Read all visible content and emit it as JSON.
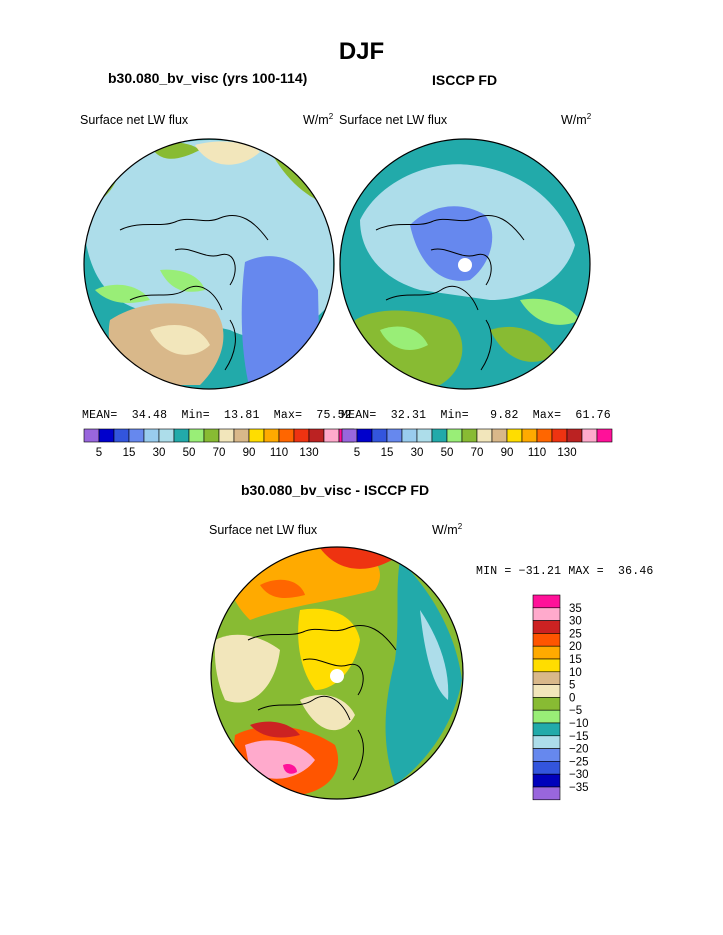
{
  "figure": {
    "title": "DJF",
    "panels": [
      {
        "title": "b30.080_bv_visc (yrs 100-114)",
        "variable": "Surface net LW flux",
        "units_base": "W/m",
        "units_exp": "2",
        "mean_label": "MEAN=",
        "mean": "34.48",
        "min_label": "Min=",
        "min": "13.81",
        "max_label": "Max=",
        "max": "75.52"
      },
      {
        "title": "ISCCP FD",
        "variable": "Surface net LW flux",
        "units_base": "W/m",
        "units_exp": "2",
        "mean_label": "MEAN=",
        "mean": "32.31",
        "min_label": "Min=",
        "min": "9.82",
        "max_label": "Max=",
        "max": "61.76"
      },
      {
        "title": "b30.080_bv_visc - ISCCP FD",
        "variable": "Surface net LW flux",
        "units_base": "W/m",
        "units_exp": "2",
        "minmax_text": "MIN = −31.21 MAX =  36.46"
      }
    ],
    "colorbar_top": {
      "colors": [
        "#9966dd",
        "#0000cc",
        "#3355dd",
        "#6688ee",
        "#99ccee",
        "#adddea",
        "#22aaaa",
        "#99ee77",
        "#88bb33",
        "#f2e6bb",
        "#d9b88a",
        "#ffdd00",
        "#ffaa00",
        "#ff6600",
        "#ee3311",
        "#bb2222",
        "#ffaacc",
        "#ff1199"
      ],
      "tick_labels": [
        "5",
        "15",
        "30",
        "50",
        "70",
        "90",
        "110",
        "130"
      ]
    },
    "colorbar_diff": {
      "colors": [
        "#9966dd",
        "#0000bb",
        "#3355dd",
        "#6688ee",
        "#adddea",
        "#22aaaa",
        "#99ee77",
        "#88bb33",
        "#f2e6bb",
        "#d9b88a",
        "#ffdd00",
        "#ffaa00",
        "#ff5500",
        "#cc2222",
        "#ffaacc",
        "#ff1199"
      ],
      "tick_labels": [
        "35",
        "30",
        "25",
        "20",
        "15",
        "10",
        "5",
        "0",
        "−5",
        "−10",
        "−15",
        "−20",
        "−25",
        "−30",
        "−35"
      ]
    }
  },
  "chart_data": [
    {
      "type": "heatmap",
      "title": "b30.080_bv_visc (yrs 100-114)",
      "subtitle": "Surface net LW flux",
      "units": "W/m2",
      "projection": "polar stereographic (North Pole)",
      "season": "DJF",
      "stats": {
        "mean": 34.48,
        "min": 13.81,
        "max": 75.52
      },
      "levels": [
        5,
        10,
        15,
        20,
        25,
        30,
        40,
        50,
        60,
        70,
        80,
        90,
        100,
        110,
        120,
        130
      ],
      "legend_position": "bottom"
    },
    {
      "type": "heatmap",
      "title": "ISCCP FD",
      "subtitle": "Surface net LW flux",
      "units": "W/m2",
      "projection": "polar stereographic (North Pole)",
      "season": "DJF",
      "stats": {
        "mean": 32.31,
        "min": 9.82,
        "max": 61.76
      },
      "levels": [
        5,
        10,
        15,
        20,
        25,
        30,
        40,
        50,
        60,
        70,
        80,
        90,
        100,
        110,
        120,
        130
      ],
      "legend_position": "bottom"
    },
    {
      "type": "heatmap",
      "title": "b30.080_bv_visc - ISCCP FD",
      "subtitle": "Surface net LW flux",
      "units": "W/m2",
      "projection": "polar stereographic (North Pole)",
      "season": "DJF",
      "stats": {
        "min": -31.21,
        "max": 36.46
      },
      "levels": [
        -35,
        -30,
        -25,
        -20,
        -15,
        -10,
        -5,
        0,
        5,
        10,
        15,
        20,
        25,
        30,
        35
      ],
      "legend_position": "right"
    }
  ]
}
